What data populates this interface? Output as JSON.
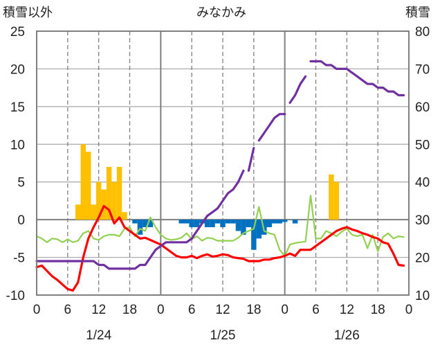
{
  "chart_data": {
    "type": "combo",
    "title": "みなかみ",
    "y_left_label": "積雪以外",
    "y_right_label": "積雪",
    "y_left_range": [
      -10,
      25
    ],
    "y_left_ticks": [
      "25",
      "20",
      "15",
      "10",
      "5",
      "0",
      "-5",
      "-10"
    ],
    "y_right_range": [
      10,
      80
    ],
    "y_right_ticks": [
      "80",
      "70",
      "60",
      "50",
      "40",
      "30",
      "20",
      "10"
    ],
    "x_range_hours": [
      0,
      72
    ],
    "x_tick_labels": [
      "0",
      "6",
      "12",
      "18",
      "0",
      "6",
      "12",
      "18",
      "0",
      "6",
      "12",
      "18",
      "0"
    ],
    "date_labels": [
      "1/24",
      "1/25",
      "1/26"
    ],
    "grid": true,
    "colors": {
      "snow_depth": "#7030a0",
      "temperature": "#ff0000",
      "dew_point": "#92d050",
      "snowfall": "#ffc000",
      "snow_decrease": "#0070c0"
    },
    "snowfall_bars": {
      "x": [
        8,
        9,
        10,
        11,
        12,
        13,
        14,
        15,
        16,
        17,
        57,
        58
      ],
      "values": [
        2,
        10,
        9,
        2,
        5,
        4,
        7,
        5,
        7,
        1,
        6,
        5
      ]
    },
    "decrease_bars": {
      "x": [
        19,
        20,
        21,
        22,
        28,
        29,
        30,
        31,
        32,
        33,
        34,
        35,
        36,
        37,
        38,
        39,
        40,
        41,
        42,
        43,
        44,
        45,
        46,
        47,
        48,
        50
      ],
      "values": [
        -0.5,
        -2,
        -1,
        -1,
        -0.5,
        -0.5,
        -1,
        -1,
        -0.5,
        -1,
        -1,
        -0.5,
        -1,
        -0.5,
        -0.5,
        -1.5,
        -2,
        -1,
        -4,
        -2.5,
        -2,
        -1,
        -0.5,
        -0.5,
        -0.3,
        -0.5
      ]
    },
    "series": [
      {
        "key": "snow_depth",
        "axis": "right",
        "segments": [
          {
            "x": [
              0,
              1,
              2,
              3,
              4,
              5,
              6,
              7,
              8,
              9,
              10,
              11,
              12,
              13,
              14,
              15,
              16,
              17,
              18,
              19,
              20,
              21,
              22,
              23,
              24,
              25,
              26,
              27,
              28,
              29,
              30,
              31,
              32,
              33,
              34,
              35,
              36,
              37,
              38,
              39,
              40
            ],
            "y": [
              19,
              19,
              19,
              19,
              19,
              19,
              19,
              19,
              19,
              19,
              19,
              19,
              18,
              18,
              17,
              17,
              17,
              17,
              17,
              17,
              18,
              18,
              20,
              22,
              23,
              24,
              24,
              24,
              24,
              24,
              25,
              27,
              29,
              31,
              32,
              33,
              35,
              37,
              38,
              40,
              43
            ]
          },
          {
            "x": [
              41,
              42
            ],
            "y": [
              43,
              49
            ]
          },
          {
            "x": [
              43,
              44,
              45,
              46,
              47,
              48
            ],
            "y": [
              51,
              53,
              55,
              57,
              58,
              58
            ]
          },
          {
            "x": [
              49,
              50,
              51,
              52
            ],
            "y": [
              61,
              63,
              66,
              68
            ]
          },
          {
            "x": [
              53,
              54,
              55,
              56,
              57,
              58,
              59,
              60,
              61,
              62,
              63,
              64,
              65,
              66,
              67,
              68,
              69,
              70,
              71
            ],
            "y": [
              72,
              72,
              72,
              71,
              71,
              70,
              70,
              70,
              69,
              68,
              67,
              66,
              66,
              65,
              65,
              64,
              64,
              63,
              63
            ]
          }
        ]
      },
      {
        "key": "temperature",
        "axis": "left",
        "segments": [
          {
            "x": [
              0,
              1,
              2,
              3,
              4,
              5,
              6,
              7,
              8,
              9,
              10,
              11,
              12,
              13,
              14,
              15,
              16,
              17,
              18,
              19,
              20,
              21,
              22,
              23,
              24,
              25,
              26,
              27,
              28,
              29,
              30,
              31,
              32,
              33,
              34,
              35,
              36,
              37,
              38,
              39,
              40,
              41,
              42,
              43,
              44,
              45,
              46,
              47,
              48,
              49,
              50,
              51,
              52,
              53,
              54,
              55,
              56,
              57,
              58,
              59,
              60,
              61,
              62,
              63,
              64,
              65,
              66,
              67,
              68,
              69,
              70,
              71
            ],
            "y": [
              -6.3,
              -6.1,
              -6.8,
              -7.5,
              -8,
              -8.6,
              -9.2,
              -9.4,
              -8.3,
              -5,
              -2.5,
              -1,
              0.3,
              1.8,
              1.3,
              -0.5,
              0.3,
              -1,
              -1.5,
              -2,
              -2.5,
              -2.4,
              -2.7,
              -3,
              -3.3,
              -3.8,
              -4.3,
              -4.8,
              -5,
              -5,
              -4.8,
              -5.1,
              -4.8,
              -4.6,
              -4.9,
              -4.8,
              -4.6,
              -4.7,
              -5,
              -5.1,
              -5.2,
              -5.5,
              -5.5,
              -5.5,
              -5.3,
              -5.3,
              -5.1,
              -5,
              -4.8,
              -4.5,
              -4.8,
              -4,
              -4,
              -4,
              -3.5,
              -3,
              -2.5,
              -2,
              -1.5,
              -1.2,
              -1,
              -1.3,
              -1.5,
              -1.8,
              -2,
              -2.3,
              -2.5,
              -3,
              -3.2,
              -4.5,
              -6,
              -6.1
            ]
          }
        ]
      },
      {
        "key": "dew_point",
        "axis": "left",
        "segments": [
          {
            "x": [
              0,
              1,
              2,
              3,
              4,
              5,
              6,
              7,
              8,
              9,
              10,
              11,
              12,
              13,
              14,
              15,
              16,
              17,
              18,
              19,
              20,
              21,
              22,
              23,
              24,
              25,
              26,
              27,
              28,
              29,
              30,
              31,
              32,
              33,
              34,
              35,
              36,
              37,
              38,
              39,
              40,
              41,
              42,
              43,
              44,
              45,
              46,
              47,
              48,
              49,
              50,
              51,
              52,
              53,
              54,
              55,
              56,
              57,
              58,
              59,
              60,
              61,
              62,
              63,
              64,
              65,
              66,
              67,
              68,
              69,
              70,
              71
            ],
            "y": [
              -2.2,
              -2.5,
              -3,
              -2.5,
              -2.6,
              -3,
              -2.6,
              -3,
              -2.8,
              -1.8,
              -1.5,
              -2.5,
              -2.7,
              -2.2,
              -2,
              -2,
              -2.2,
              -1.2,
              -1,
              -2.2,
              -1.2,
              -1.5,
              0.3,
              -1,
              -2,
              -2.5,
              -2.7,
              -2.6,
              -2.4,
              -1.8,
              -2.6,
              -2.2,
              -2.8,
              -2.4,
              -2.5,
              -2.8,
              -2.8,
              -2.8,
              -2.8,
              -2.4,
              -1.8,
              -1.5,
              -1.2,
              1.7,
              -1.5,
              -1.8,
              -2,
              -4,
              -4.8,
              -3.3,
              -3.1,
              -3,
              -2.9,
              3.2,
              -2.5,
              -2.5,
              -1.5,
              -1.8,
              -2.2,
              -1.6,
              -1.2,
              -2,
              -2.2,
              -2,
              -3.8,
              -2,
              -4.2,
              -2.3,
              -1.8,
              -2.5,
              -2.2,
              -2.3
            ]
          }
        ]
      }
    ]
  }
}
